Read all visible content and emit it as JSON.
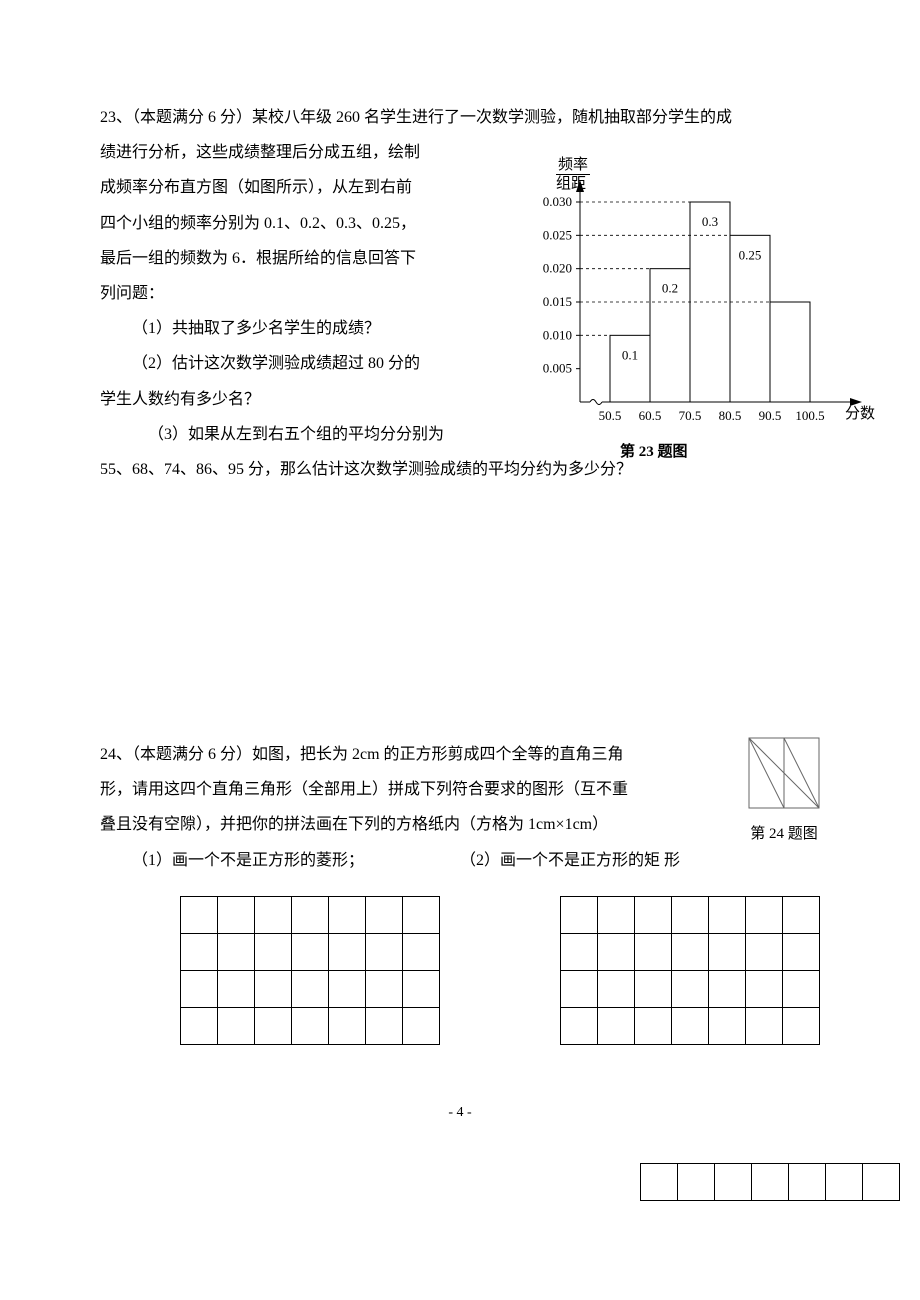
{
  "q23": {
    "line1": "23、（本题满分 6 分）某校八年级 260 名学生进行了一次数学测验，随机抽取部分学生的成",
    "line2": "绩进行分析，这些成绩整理后分成五组，绘制",
    "line3": "成频率分布直方图（如图所示），从左到右前",
    "line4": "四个小组的频率分别为 0.1、0.2、0.3、0.25，",
    "line5": "最后一组的频数为 6．根据所给的信息回答下",
    "line6": "列问题：",
    "sub1": "（1）共抽取了多少名学生的成绩？",
    "sub2": "（2）估计这次数学测验成绩超过 80 分的",
    "sub2b": "学生人数约有多少名？",
    "sub3": "（3）如果从左到右五个组的平均分分别为",
    "line7": "55、68、74、86、95 分，那么估计这次数学测验成绩的平均分约为多少分？",
    "chart": {
      "ylabel_top": "频率",
      "ylabel_bot": "组距",
      "xlabel": "分数",
      "caption": "第 23 题图",
      "yticks": [
        "0.005",
        "0.010",
        "0.015",
        "0.020",
        "0.025",
        "0.030"
      ],
      "xticks": [
        "50.5",
        "60.5",
        "70.5",
        "80.5",
        "90.5",
        "100.5"
      ],
      "bars": [
        {
          "label": "0.1",
          "h": 0.01
        },
        {
          "label": "0.2",
          "h": 0.02
        },
        {
          "label": "0.3",
          "h": 0.03
        },
        {
          "label": "0.25",
          "h": 0.025
        },
        {
          "label": "",
          "h": 0.015
        }
      ],
      "ymax": 0.03,
      "axis_color": "#000000",
      "bar_stroke": "#000000",
      "bar_fill": "#ffffff",
      "font_size": 13
    }
  },
  "q24": {
    "line1": "24、（本题满分 6 分）如图，把长为 2cm 的正方形剪成四个全等的直角三角",
    "line2": "形，请用这四个直角三角形（全部用上）拼成下列符合要求的图形（互不重",
    "line3": "叠且没有空隙），并把你的拼法画在下列的方格纸内（方格为 1cm×1cm）",
    "sub1": "（1）画一个不是正方形的菱形；",
    "sub2": "（2）画一个不是正方形的矩 形",
    "caption": "第 24 题图",
    "grid1": {
      "rows": 4,
      "cols": 7
    },
    "grid2": {
      "rows": 4,
      "cols": 7
    },
    "grid3": {
      "rows": 1,
      "cols": 7
    }
  },
  "page_num": "- 4 -"
}
